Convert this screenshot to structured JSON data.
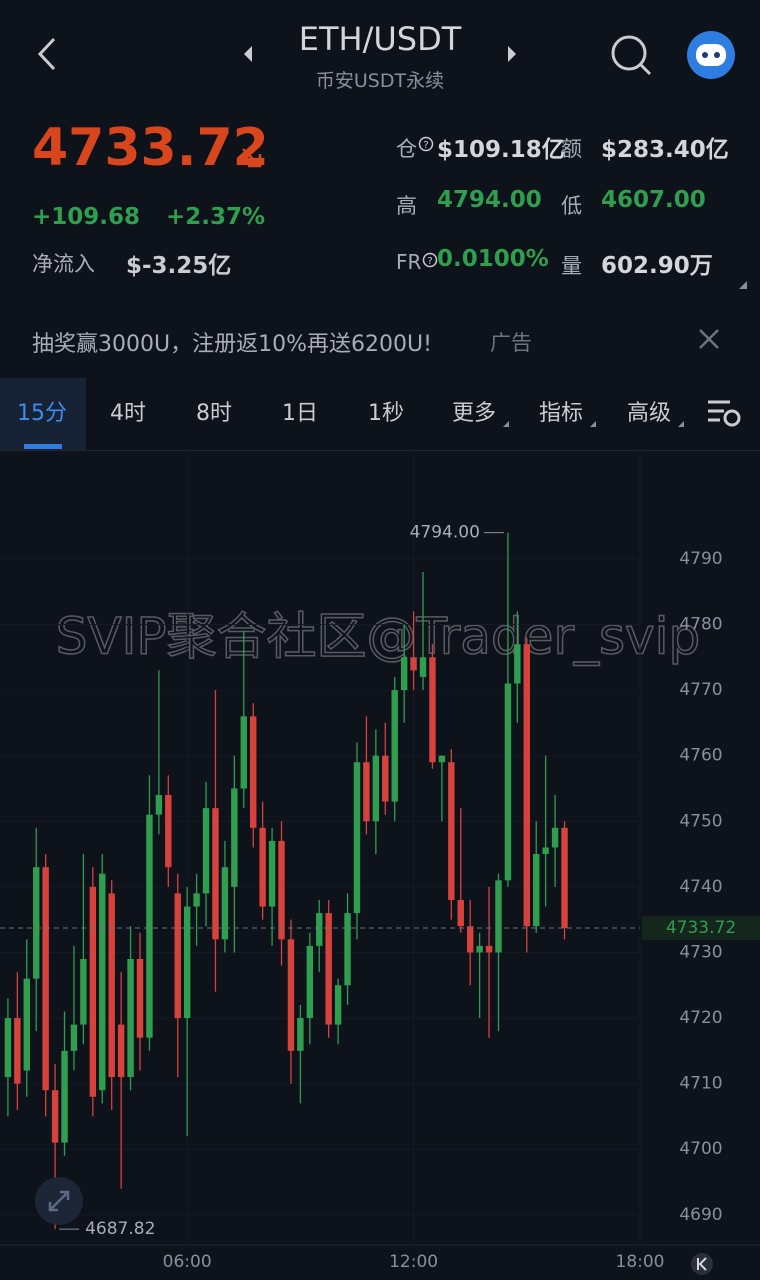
{
  "header": {
    "title": "ETH/USDT",
    "subtitle": "币安USDT永续",
    "price": "4733.72",
    "change": "+109.68",
    "change_pct": "+2.37%",
    "inflow_label": "净流入",
    "inflow_value": "$-3.25亿"
  },
  "stats": {
    "oi_label": "仓",
    "oi_value": "$109.18亿",
    "turnover_label": "额",
    "turnover_value": "$283.40亿",
    "high_label": "高",
    "high_value": "4794.00",
    "low_label": "低",
    "low_value": "4607.00",
    "fr_label": "FR",
    "fr_value": "0.0100%",
    "volume_label": "量",
    "volume_value": "602.90万"
  },
  "ad": {
    "text": "抽奖赢3000U，注册返10%再送6200U!",
    "tag": "广告"
  },
  "tabs": [
    "15分",
    "4时",
    "8时",
    "1日",
    "1秒",
    "更多",
    "指标",
    "高级"
  ],
  "watermark": "SVIP聚合社区@Trader_svip",
  "chart_data": {
    "type": "candlestick",
    "up_color": "#2f9e4f",
    "down_color": "#d8423c",
    "x": [
      1.25,
      1.5,
      1.75,
      2,
      2.25,
      2.5,
      2.75,
      3,
      3.25,
      3.5,
      3.75,
      4,
      4.25,
      4.5,
      4.75,
      5,
      5.25,
      5.5,
      5.75,
      6,
      6.25,
      6.5,
      6.75,
      7,
      7.25,
      7.5,
      7.75,
      8,
      8.25,
      8.5,
      8.75,
      9,
      9.25,
      9.5,
      9.75,
      10,
      10.25,
      10.5,
      10.75,
      11,
      11.25,
      11.5,
      11.75,
      12,
      12.25,
      12.5,
      12.75,
      13,
      13.25,
      13.5,
      13.75,
      14,
      14.25,
      14.5,
      14.75,
      15,
      15.25,
      15.5,
      15.75,
      16
    ],
    "open": [
      4711,
      4720,
      4712,
      4726,
      4743,
      4709,
      4701,
      4715,
      4719,
      4740,
      4709,
      4739,
      4719,
      4711,
      4729,
      4717,
      4751,
      4754,
      4739,
      4720,
      4737,
      4739,
      4752,
      4732,
      4740,
      4755,
      4766,
      4749,
      4737,
      4747,
      4732,
      4715,
      4720,
      4731,
      4736,
      4719,
      4725,
      4736,
      4759,
      4750,
      4760,
      4753,
      4770,
      4775,
      4772,
      4775,
      4759,
      4759,
      4738,
      4734,
      4730,
      4731,
      4730,
      4741,
      4771,
      4777,
      4734,
      4745,
      4746,
      4749
    ],
    "high": [
      4723,
      4727,
      4732,
      4749,
      4745,
      4713,
      4721,
      4731,
      4745,
      4743,
      4745,
      4741,
      4727,
      4734,
      4733,
      4757,
      4773,
      4757,
      4742,
      4740,
      4742,
      4756,
      4770,
      4747,
      4760,
      4779,
      4768,
      4753,
      4749,
      4750,
      4735,
      4722,
      4733,
      4738,
      4738,
      4726,
      4739,
      4762,
      4766,
      4764,
      4765,
      4772,
      4780,
      4782,
      4788,
      4777,
      4760,
      4761,
      4752,
      4738,
      4733,
      4740,
      4742,
      4794,
      4782,
      4778,
      4750,
      4760,
      4754,
      4750
    ],
    "low": [
      4705,
      4706,
      4708,
      4718,
      4705,
      4687.82,
      4699,
      4712,
      4716,
      4705,
      4707,
      4706,
      4694,
      4709,
      4712,
      4715,
      4748,
      4740,
      4711,
      4702,
      4731,
      4734,
      4724,
      4730,
      4730,
      4752,
      4746,
      4735,
      4731,
      4728,
      4710,
      4707,
      4716,
      4727,
      4717,
      4716,
      4722,
      4732,
      4748,
      4745,
      4751,
      4750,
      4765,
      4770,
      4770,
      4758,
      4750,
      4735,
      4733,
      4725,
      4720,
      4717,
      4718,
      4740,
      4765,
      4730,
      4733,
      4737,
      4740,
      4732
    ],
    "close": [
      4720,
      4710,
      4726,
      4743,
      4709,
      4701,
      4715,
      4719,
      4729,
      4708,
      4742,
      4711,
      4711,
      4729,
      4717,
      4751,
      4754,
      4743,
      4720,
      4737,
      4739,
      4752,
      4732,
      4743,
      4755,
      4766,
      4749,
      4737,
      4747,
      4732,
      4715,
      4720,
      4731,
      4736,
      4719,
      4725,
      4736,
      4759,
      4750,
      4760,
      4753,
      4770,
      4775,
      4773,
      4775,
      4759,
      4760,
      4738,
      4734,
      4730,
      4731,
      4730,
      4741,
      4771,
      4777,
      4734,
      4745,
      4746,
      4749,
      4733.72
    ],
    "xlim": [
      1.04,
      18
    ],
    "xticks": [
      {
        "value": 6,
        "label": "06:00"
      },
      {
        "value": 12,
        "label": "12:00"
      },
      {
        "value": 18,
        "label": "18:00"
      }
    ],
    "ylim": [
      4685.4,
      4806.6
    ],
    "yticks": [
      4690,
      4700,
      4710,
      4720,
      4730,
      4740,
      4750,
      4760,
      4770,
      4780,
      4790
    ],
    "high_label": {
      "x": 14.5,
      "value": 4794,
      "label": "4794.00"
    },
    "low_label": {
      "x": 2.5,
      "value": 4687.82,
      "label": "4687.82"
    },
    "last_price": {
      "value": 4733.72,
      "label": "4733.72"
    }
  }
}
